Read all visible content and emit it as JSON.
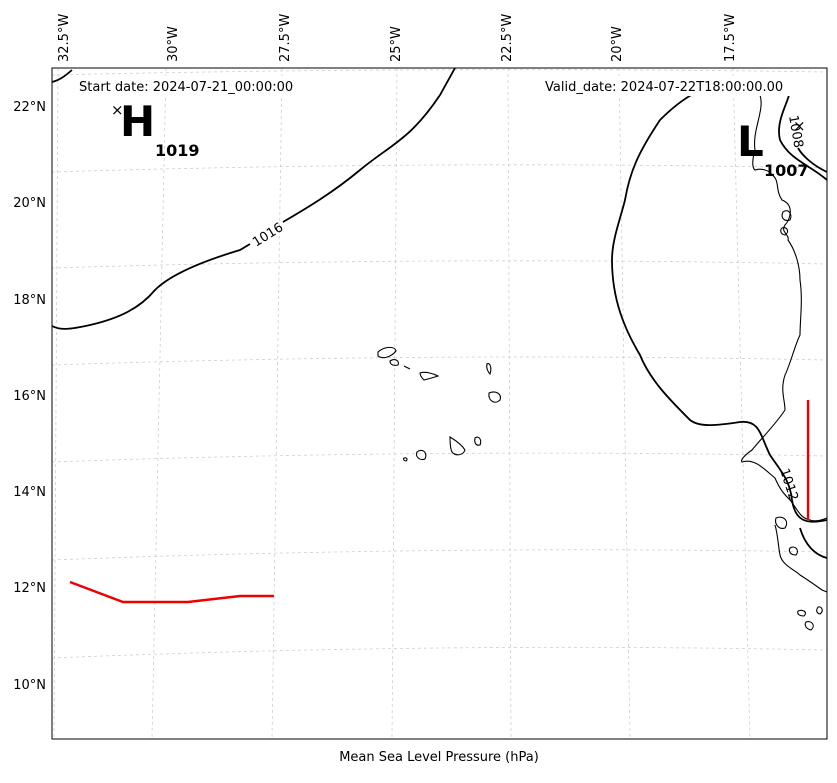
{
  "header": {
    "start_date": "Start date: 2024-07-21_00:00:00",
    "valid_date": "Valid_date: 2024-07-22T18:00:00.00"
  },
  "xlabel": "Mean Sea Level Pressure (hPa)",
  "lon_ticks": [
    "32.5°W",
    "30°W",
    "27.5°W",
    "25°W",
    "22.5°W",
    "20°W",
    "17.5°W"
  ],
  "lat_ticks": [
    "22°N",
    "20°N",
    "18°N",
    "16°N",
    "14°N",
    "12°N",
    "10°N"
  ],
  "pressure_centers": [
    {
      "symbol": "H",
      "value": "1019"
    },
    {
      "symbol": "L",
      "value": "1007"
    }
  ],
  "isobar_labels": [
    "1016",
    "1008",
    "1012"
  ],
  "colors": {
    "isobar": "#000000",
    "track": "#ee0000",
    "grid": "#cfcfcf"
  }
}
